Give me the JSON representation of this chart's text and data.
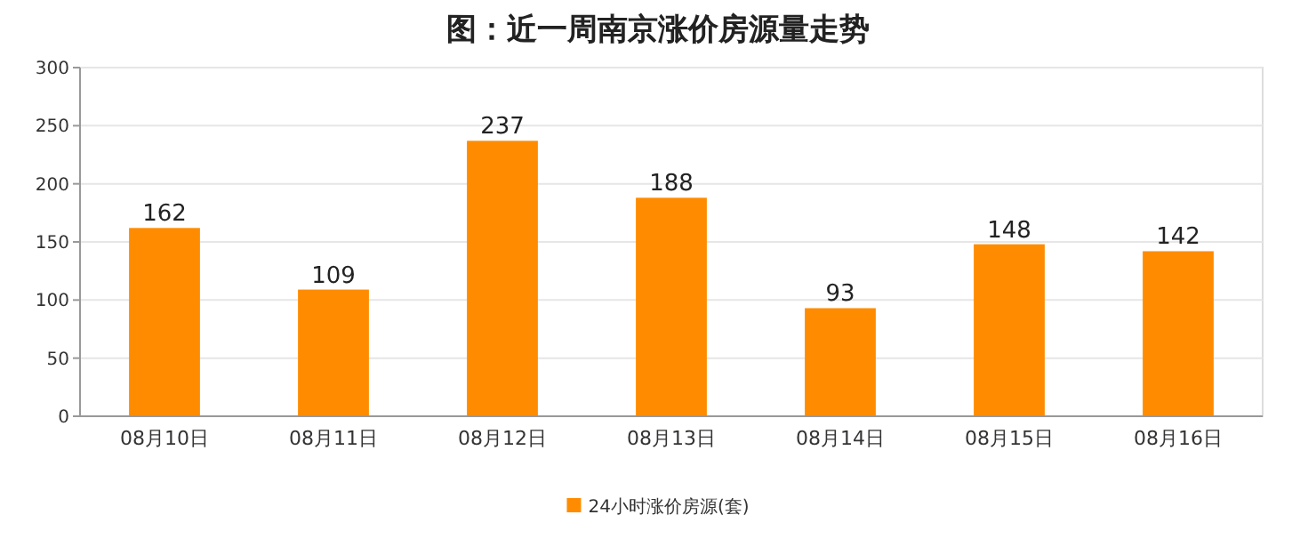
{
  "chart_data": {
    "type": "bar",
    "title": "图：近一周南京涨价房源量走势",
    "categories": [
      "08月10日",
      "08月11日",
      "08月12日",
      "08月13日",
      "08月14日",
      "08月15日",
      "08月16日"
    ],
    "series": [
      {
        "name": "24小时涨价房源(套)",
        "color": "#ff8c00",
        "values": [
          162,
          109,
          237,
          188,
          93,
          148,
          142
        ]
      }
    ],
    "ylim": [
      0,
      300
    ],
    "yticks": [
      0,
      50,
      100,
      150,
      200,
      250,
      300
    ],
    "grid": "y",
    "legend": "bottom",
    "data_labels": true
  }
}
